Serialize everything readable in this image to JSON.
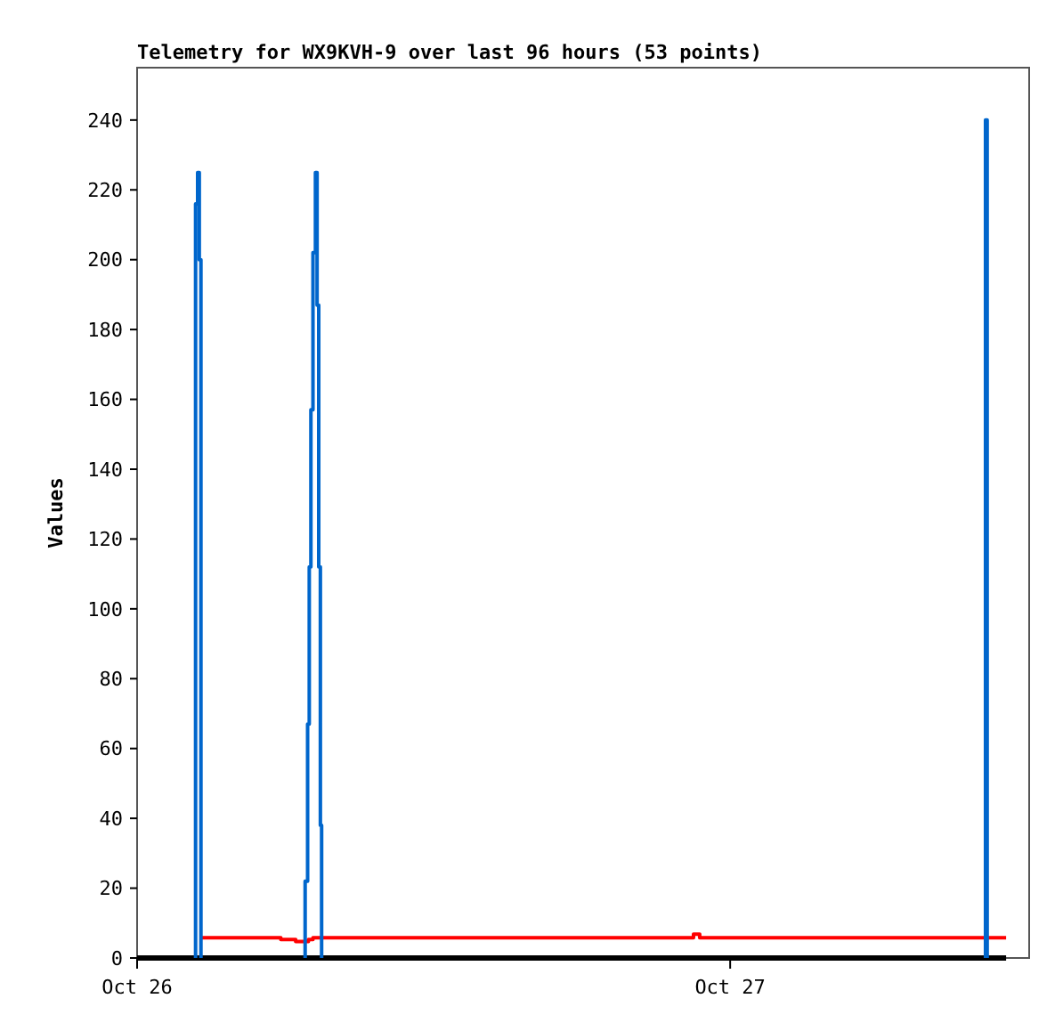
{
  "chart_data": {
    "type": "step",
    "title": "Telemetry for WX9KVH-9 over last 96 hours (53 points)",
    "ylabel": "Values",
    "xlim": [
      "--10-26T00:00",
      "--10-27T12:06"
    ],
    "xticks": [
      {
        "value": "--10-26",
        "label": "Oct 26"
      },
      {
        "value": "--10-27",
        "label": "Oct 27"
      }
    ],
    "ylim": [
      0,
      255
    ],
    "yticks": [
      0,
      20,
      40,
      60,
      80,
      100,
      120,
      140,
      160,
      180,
      200,
      220,
      240
    ],
    "grid": false,
    "line_style": "solid",
    "marker": "none",
    "series": [
      {
        "color": "#ff0000",
        "x": [
          "--10-26T02:34",
          "--10-26T05:49",
          "--10-26T06:25",
          "--10-26T06:56",
          "--10-26T07:07",
          "--10-26T22:31",
          "--10-26T22:46",
          "--10-27T11:10"
        ],
        "values": [
          5.8,
          5.3,
          4.7,
          5.3,
          5.8,
          6.8,
          5.8,
          5.8
        ]
      },
      {
        "color": "#000000",
        "x": [
          "--10-26T00:00",
          "--10-27T11:10"
        ],
        "values": [
          0,
          0
        ]
      },
      {
        "color": "#0066cc",
        "x": [
          "--10-26T02:22",
          "--10-26T02:22",
          "--10-26T02:27",
          "--10-26T02:31",
          "--10-26T02:35",
          "--10-26T02:36",
          "--10-26T06:48",
          "--10-26T06:48",
          "--10-26T06:54",
          "--10-26T06:58",
          "--10-26T07:02",
          "--10-26T07:07",
          "--10-26T07:13",
          "--10-26T07:17",
          "--10-26T07:21",
          "--10-26T07:25",
          "--10-26T07:28",
          "--10-26T07:30",
          "--10-27T10:20",
          "--10-27T10:20",
          "--10-27T10:24"
        ],
        "values": [
          0,
          216,
          225,
          200,
          0,
          null,
          0,
          22,
          67,
          112,
          157,
          202,
          225,
          187,
          112,
          38,
          0,
          null,
          0,
          240,
          0
        ]
      }
    ]
  }
}
